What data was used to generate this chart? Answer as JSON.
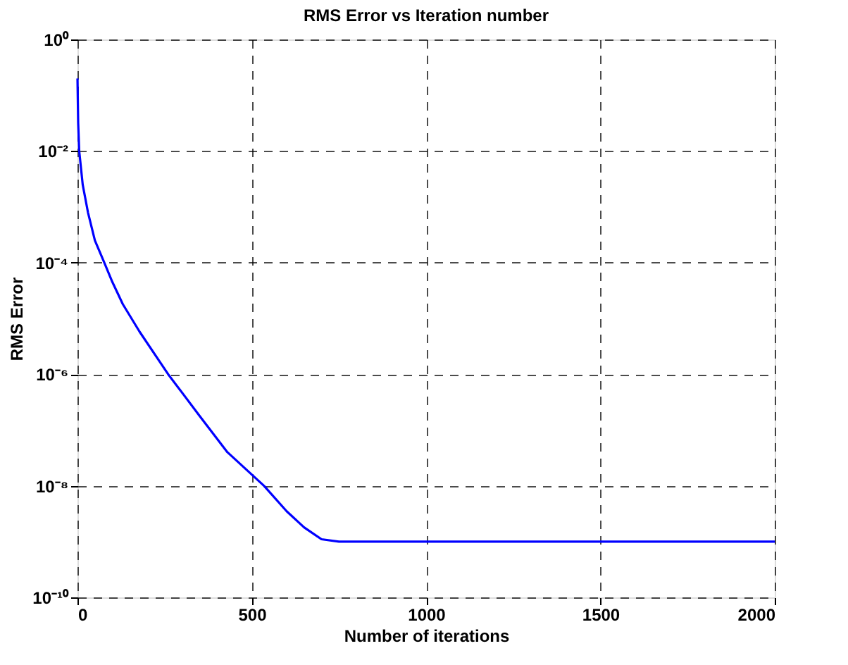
{
  "chart_data": {
    "type": "line",
    "title": "RMS Error vs Iteration number",
    "xlabel": "Number of iterations",
    "ylabel": "RMS Error",
    "x": [
      0,
      2,
      5,
      15,
      30,
      50,
      77,
      100,
      130,
      178,
      260,
      350,
      430,
      535,
      600,
      650,
      700,
      750,
      2000
    ],
    "series": [
      {
        "color": "#0000ff",
        "values": [
          0.2,
          0.032,
          0.01,
          0.0025,
          0.0008,
          0.00025,
          0.0001,
          4.5e-05,
          1.8e-05,
          5.8e-06,
          1e-06,
          1.8e-07,
          4e-08,
          1e-08,
          3.5e-09,
          1.8e-09,
          1.1e-09,
          1e-09,
          1e-09
        ]
      }
    ],
    "xlim": [
      0,
      2000
    ],
    "xticks": [
      0,
      500,
      1000,
      1500,
      2000
    ],
    "ylim": [
      1e-10,
      1
    ],
    "yticks": [
      {
        "value": 1e-10,
        "label": "10⁻¹⁰"
      },
      {
        "value": 1e-08,
        "label": "10⁻⁸"
      },
      {
        "value": 1e-06,
        "label": "10⁻⁶"
      },
      {
        "value": 0.0001,
        "label": "10⁻⁴"
      },
      {
        "value": 0.01,
        "label": "10⁻²"
      },
      {
        "value": 1,
        "label": "10⁰"
      }
    ],
    "log": "y",
    "grid": true,
    "line_style": "solid",
    "marker": "none"
  }
}
